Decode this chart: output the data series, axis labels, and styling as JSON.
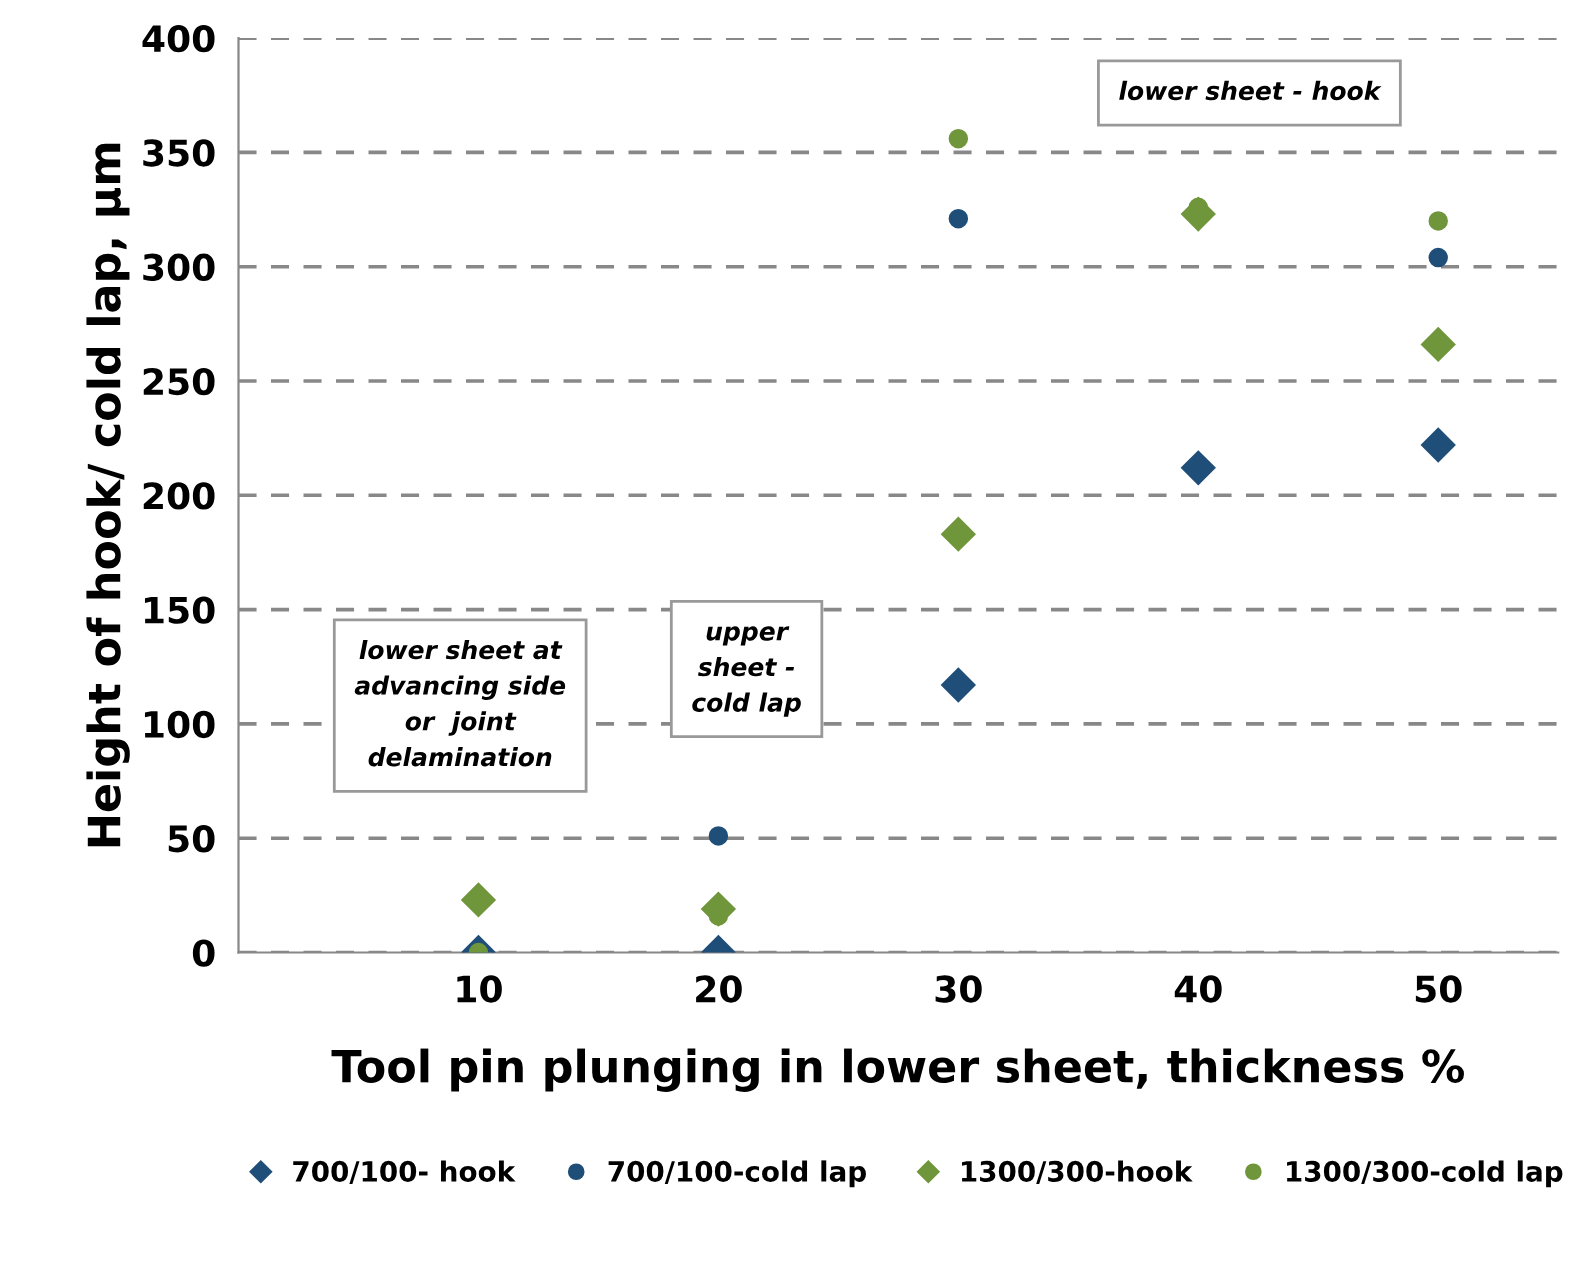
{
  "chart_data": {
    "type": "scatter",
    "xlabel": "Tool pin plunging in lower sheet, thickness %",
    "ylabel": "Height of hook/ cold lap, µm",
    "x": [
      10,
      20,
      30,
      40,
      50
    ],
    "series": [
      {
        "name": "700/100- hook",
        "color": "#1f4e79",
        "marker": "diamond",
        "values": [
          0,
          0,
          117,
          212,
          222
        ]
      },
      {
        "name": "700/100-cold lap",
        "color": "#1f4e79",
        "marker": "circle",
        "values": [
          null,
          51,
          321,
          null,
          304
        ]
      },
      {
        "name": "1300/300-hook",
        "color": "#70963c",
        "marker": "diamond",
        "values": [
          23,
          19,
          183,
          323,
          266
        ]
      },
      {
        "name": "1300/300-cold lap",
        "color": "#70963c",
        "marker": "circle",
        "values": [
          0,
          16,
          356,
          326,
          320
        ]
      }
    ],
    "xlim": [
      0,
      55
    ],
    "xticks": [
      10,
      20,
      30,
      40,
      50
    ],
    "ylim": [
      0,
      400
    ],
    "yticks": [
      0,
      50,
      100,
      150,
      200,
      250,
      300,
      350,
      400
    ],
    "grid": "y",
    "legend": "bottom",
    "annotations": [
      "lower sheet at\nadvancing side\nor  joint\ndelamination",
      "upper\nsheet -\ncold lap",
      "lower sheet - hook"
    ]
  }
}
